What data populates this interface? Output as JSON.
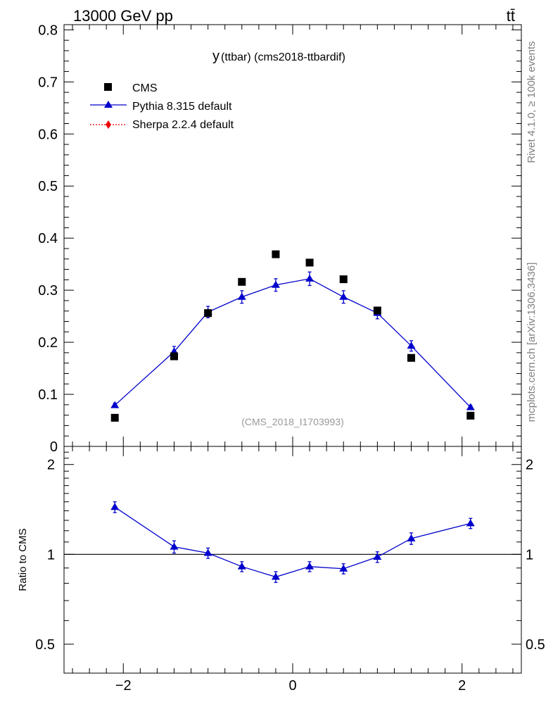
{
  "header": {
    "energy_label": "13000 GeV pp",
    "process_label": "tt̄"
  },
  "side_labels": {
    "rivet": "Rivet 4.1.0, ≥ 100k events",
    "mcplots": "mcplots.cern.ch [arXiv:1306.3436]"
  },
  "colors": {
    "data": "#000000",
    "pythia": "#0000cc",
    "sherpa": "#ee0000",
    "axis": "#000000",
    "watermark": "#999999"
  },
  "chart_data": [
    {
      "type": "scatter",
      "panel": "main",
      "title_main": "y",
      "title_sub": "(ttbar) (cms2018-ttbardif)",
      "watermark": "(CMS_2018_I1703993)",
      "xlim": [
        -2.7,
        2.7
      ],
      "ylim": [
        0,
        0.81
      ],
      "yticks": [
        0,
        0.1,
        0.2,
        0.3,
        0.4,
        0.5,
        0.6,
        0.7,
        0.8
      ],
      "ytick_labels": [
        "0",
        "0.1",
        "0.2",
        "0.3",
        "0.4",
        "0.5",
        "0.6",
        "0.7",
        "0.8"
      ],
      "legend": {
        "position": "top-left",
        "entries": [
          {
            "name": "CMS",
            "marker": "square"
          },
          {
            "name": "Pythia 8.315 default",
            "marker": "triangle"
          },
          {
            "name": "Sherpa 2.2.4 default",
            "marker": "diamond"
          }
        ]
      },
      "x": [
        -2.1,
        -1.4,
        -1.0,
        -0.6,
        -0.2,
        0.2,
        0.6,
        1.0,
        1.4,
        2.1
      ],
      "series": [
        {
          "name": "CMS",
          "style": "markers",
          "values": [
            0.055,
            0.173,
            0.256,
            0.316,
            0.369,
            0.353,
            0.321,
            0.261,
            0.17,
            0.059
          ]
        },
        {
          "name": "Pythia 8.315 default",
          "style": "line-markers",
          "values": [
            0.079,
            0.182,
            0.258,
            0.287,
            0.31,
            0.322,
            0.287,
            0.256,
            0.193,
            0.075
          ],
          "errors": [
            0.004,
            0.01,
            0.011,
            0.012,
            0.012,
            0.013,
            0.012,
            0.011,
            0.01,
            0.004
          ]
        }
      ]
    },
    {
      "type": "line",
      "panel": "ratio",
      "ylabel": "Ratio to CMS",
      "xlim": [
        -2.7,
        2.7
      ],
      "ylim": [
        0.4,
        2.3
      ],
      "yscale": "log",
      "yticks": [
        0.5,
        1,
        2
      ],
      "ytick_labels": [
        "0.5",
        "1",
        "2"
      ],
      "xticks": [
        -2,
        0,
        2
      ],
      "xtick_labels": [
        "−2",
        "0",
        "2"
      ],
      "reference_line": 1,
      "x": [
        -2.1,
        -1.4,
        -1.0,
        -0.6,
        -0.2,
        0.2,
        0.6,
        1.0,
        1.4,
        2.1
      ],
      "series": [
        {
          "name": "Pythia 8.315 default",
          "values": [
            1.44,
            1.06,
            1.01,
            0.91,
            0.84,
            0.91,
            0.895,
            0.98,
            1.13,
            1.27
          ],
          "errors": [
            0.06,
            0.05,
            0.04,
            0.035,
            0.035,
            0.035,
            0.035,
            0.04,
            0.05,
            0.05
          ]
        }
      ]
    }
  ]
}
